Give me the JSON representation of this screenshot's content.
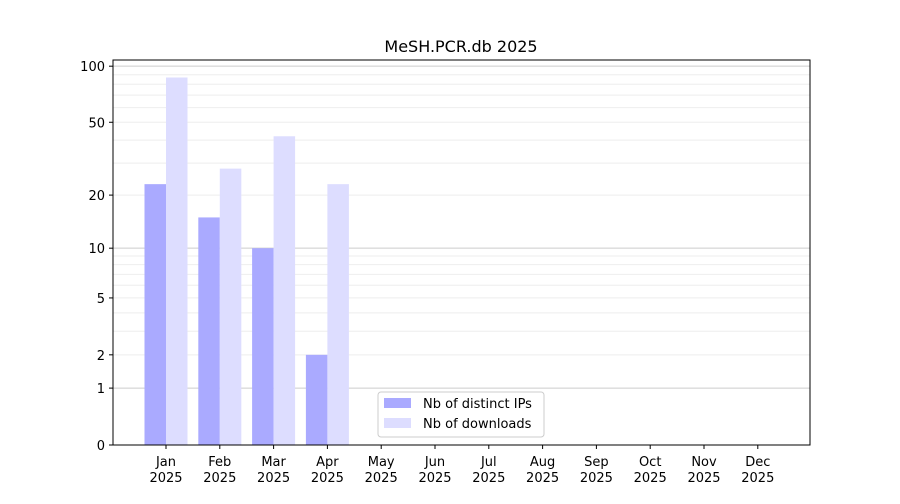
{
  "chart_data": {
    "type": "bar",
    "title": "MeSH.PCR.db 2025",
    "xlabel": "",
    "ylabel": "",
    "yscale": "symlog",
    "ylim": [
      0,
      110
    ],
    "yticks": [
      0,
      1,
      2,
      5,
      10,
      20,
      50,
      100
    ],
    "grid": true,
    "legend_position": "lower-center",
    "categories": [
      "Jan\n2025",
      "Feb\n2025",
      "Mar\n2025",
      "Apr\n2025",
      "May\n2025",
      "Jun\n2025",
      "Jul\n2025",
      "Aug\n2025",
      "Sep\n2025",
      "Oct\n2025",
      "Nov\n2025",
      "Dec\n2025"
    ],
    "series": [
      {
        "name": "Nb of distinct IPs",
        "color": "#aaaaff",
        "values": [
          23,
          15,
          10,
          2,
          0,
          0,
          0,
          0,
          0,
          0,
          0,
          0
        ]
      },
      {
        "name": "Nb of downloads",
        "color": "#ddddff",
        "values": [
          87,
          28,
          42,
          23,
          0,
          0,
          0,
          0,
          0,
          0,
          0,
          0
        ]
      }
    ]
  }
}
